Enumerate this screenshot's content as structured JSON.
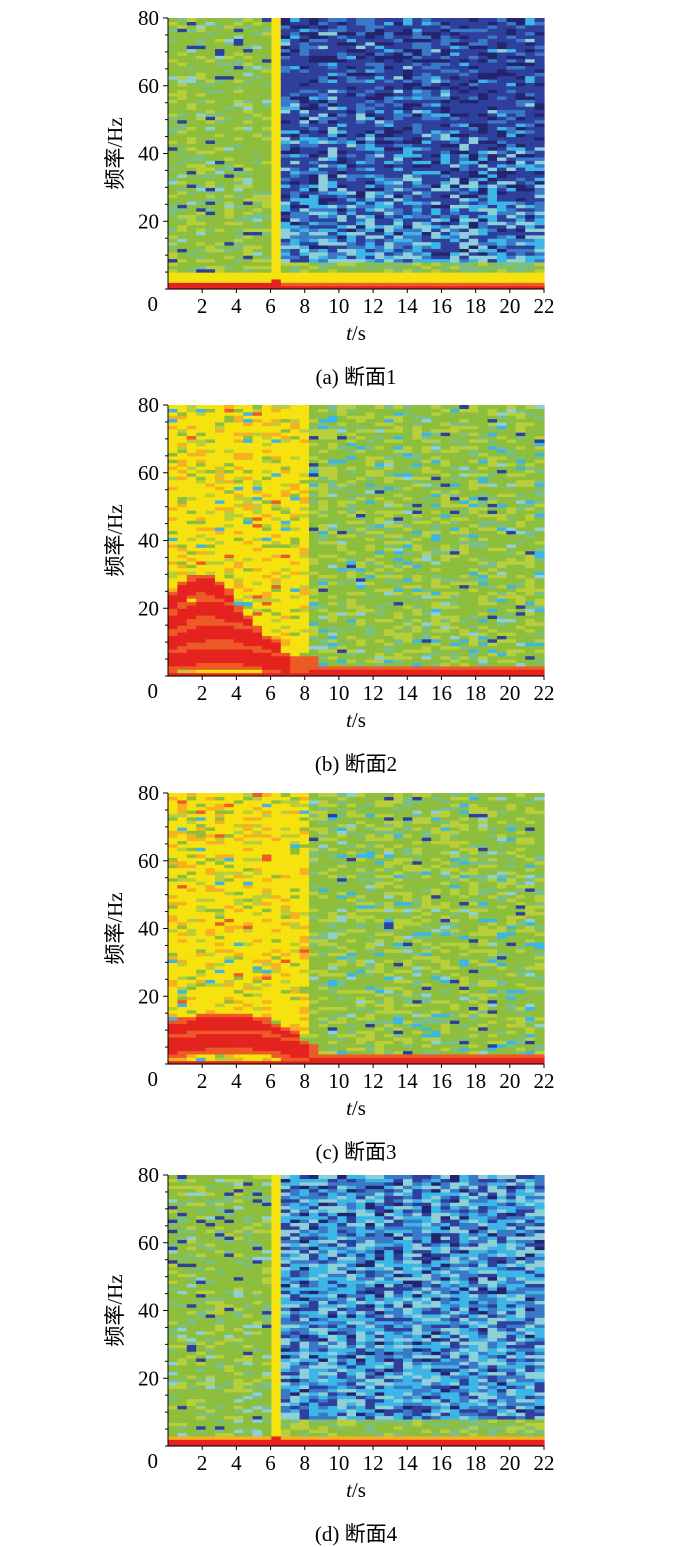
{
  "chart_data": [
    {
      "type": "heatmap",
      "caption": "(a) 断面1",
      "xlabel_italic": "t",
      "xlabel_rest": "/s",
      "ylabel": "频率/Hz",
      "xlim": [
        0,
        22
      ],
      "ylim": [
        0,
        80
      ],
      "x_ticks": [
        2,
        4,
        6,
        8,
        10,
        12,
        14,
        16,
        18,
        20,
        22
      ],
      "y_ticks": [
        20,
        40,
        60,
        80
      ],
      "origin_label": "0",
      "pattern": "blue",
      "band_x": 6.3,
      "band_type": "yellow-vertical-band",
      "time_columns": 40,
      "freq_rows": 80,
      "zones": [
        {
          "x": [
            0,
            6.8
          ],
          "level": "green"
        },
        {
          "x": [
            6.8,
            22
          ],
          "level": "blue",
          "high_freq_darker": true
        }
      ],
      "low_freq_energy": {
        "f_max": 5,
        "level": "yellow-red"
      }
    },
    {
      "type": "heatmap",
      "caption": "(b) 断面2",
      "xlabel_italic": "t",
      "xlabel_rest": "/s",
      "ylabel": "频率/Hz",
      "xlim": [
        0,
        22
      ],
      "ylim": [
        0,
        80
      ],
      "x_ticks": [
        2,
        4,
        6,
        8,
        10,
        12,
        14,
        16,
        18,
        20,
        22
      ],
      "y_ticks": [
        20,
        40,
        60,
        80
      ],
      "origin_label": "0",
      "pattern": "yellow-green",
      "time_columns": 40,
      "freq_rows": 80,
      "zones": [
        {
          "x": [
            0,
            8
          ],
          "level": "yellow"
        },
        {
          "x": [
            8,
            22
          ],
          "level": "green"
        }
      ],
      "harmonic_arches": [
        {
          "peak_f": 6,
          "x": [
            0,
            7
          ]
        },
        {
          "peak_f": 13,
          "x": [
            0,
            6.5
          ]
        },
        {
          "peak_f": 20,
          "x": [
            0,
            5.5
          ]
        },
        {
          "peak_f": 27,
          "x": [
            0,
            4.5
          ]
        }
      ]
    },
    {
      "type": "heatmap",
      "caption": "(c) 断面3",
      "xlabel_italic": "t",
      "xlabel_rest": "/s",
      "ylabel": "频率/Hz",
      "xlim": [
        0,
        22
      ],
      "ylim": [
        0,
        80
      ],
      "x_ticks": [
        2,
        4,
        6,
        8,
        10,
        12,
        14,
        16,
        18,
        20,
        22
      ],
      "y_ticks": [
        20,
        40,
        60,
        80
      ],
      "origin_label": "0",
      "pattern": "yellow-green",
      "time_columns": 40,
      "freq_rows": 80,
      "zones": [
        {
          "x": [
            0,
            8
          ],
          "level": "yellow"
        },
        {
          "x": [
            8,
            22
          ],
          "level": "green"
        }
      ],
      "harmonic_arches": [
        {
          "peak_f": 7,
          "x": [
            0,
            8
          ]
        },
        {
          "peak_f": 12,
          "x": [
            0,
            7.5
          ]
        }
      ]
    },
    {
      "type": "heatmap",
      "caption": "(d) 断面4",
      "xlabel_italic": "t",
      "xlabel_rest": "/s",
      "ylabel": "频率/Hz",
      "xlim": [
        0,
        22
      ],
      "ylim": [
        0,
        80
      ],
      "x_ticks": [
        2,
        4,
        6,
        8,
        10,
        12,
        14,
        16,
        18,
        20,
        22
      ],
      "y_ticks": [
        20,
        40,
        60,
        80
      ],
      "origin_label": "0",
      "pattern": "blue",
      "band_x": 6.3,
      "band_type": "yellow-vertical-band",
      "time_columns": 40,
      "freq_rows": 80,
      "zones": [
        {
          "x": [
            0,
            6.8
          ],
          "level": "green"
        },
        {
          "x": [
            6.8,
            22
          ],
          "level": "blue-light",
          "high_freq_darker": false
        }
      ],
      "low_freq_energy": {
        "f_max": 3,
        "level": "red"
      }
    }
  ],
  "colors": {
    "dark_navy": "#24246e",
    "navy": "#2f3f9c",
    "blue": "#3a78c8",
    "cyan": "#3cb6e6",
    "light_cyan": "#8ed0d8",
    "teal_green": "#7cbf82",
    "green": "#8dbe3e",
    "yellow_green": "#b9cf3a",
    "yellow": "#f5e20e",
    "orange": "#f6b021",
    "red_orange": "#ee5a27",
    "red": "#e4231f",
    "purple": "#4a2a7a"
  }
}
